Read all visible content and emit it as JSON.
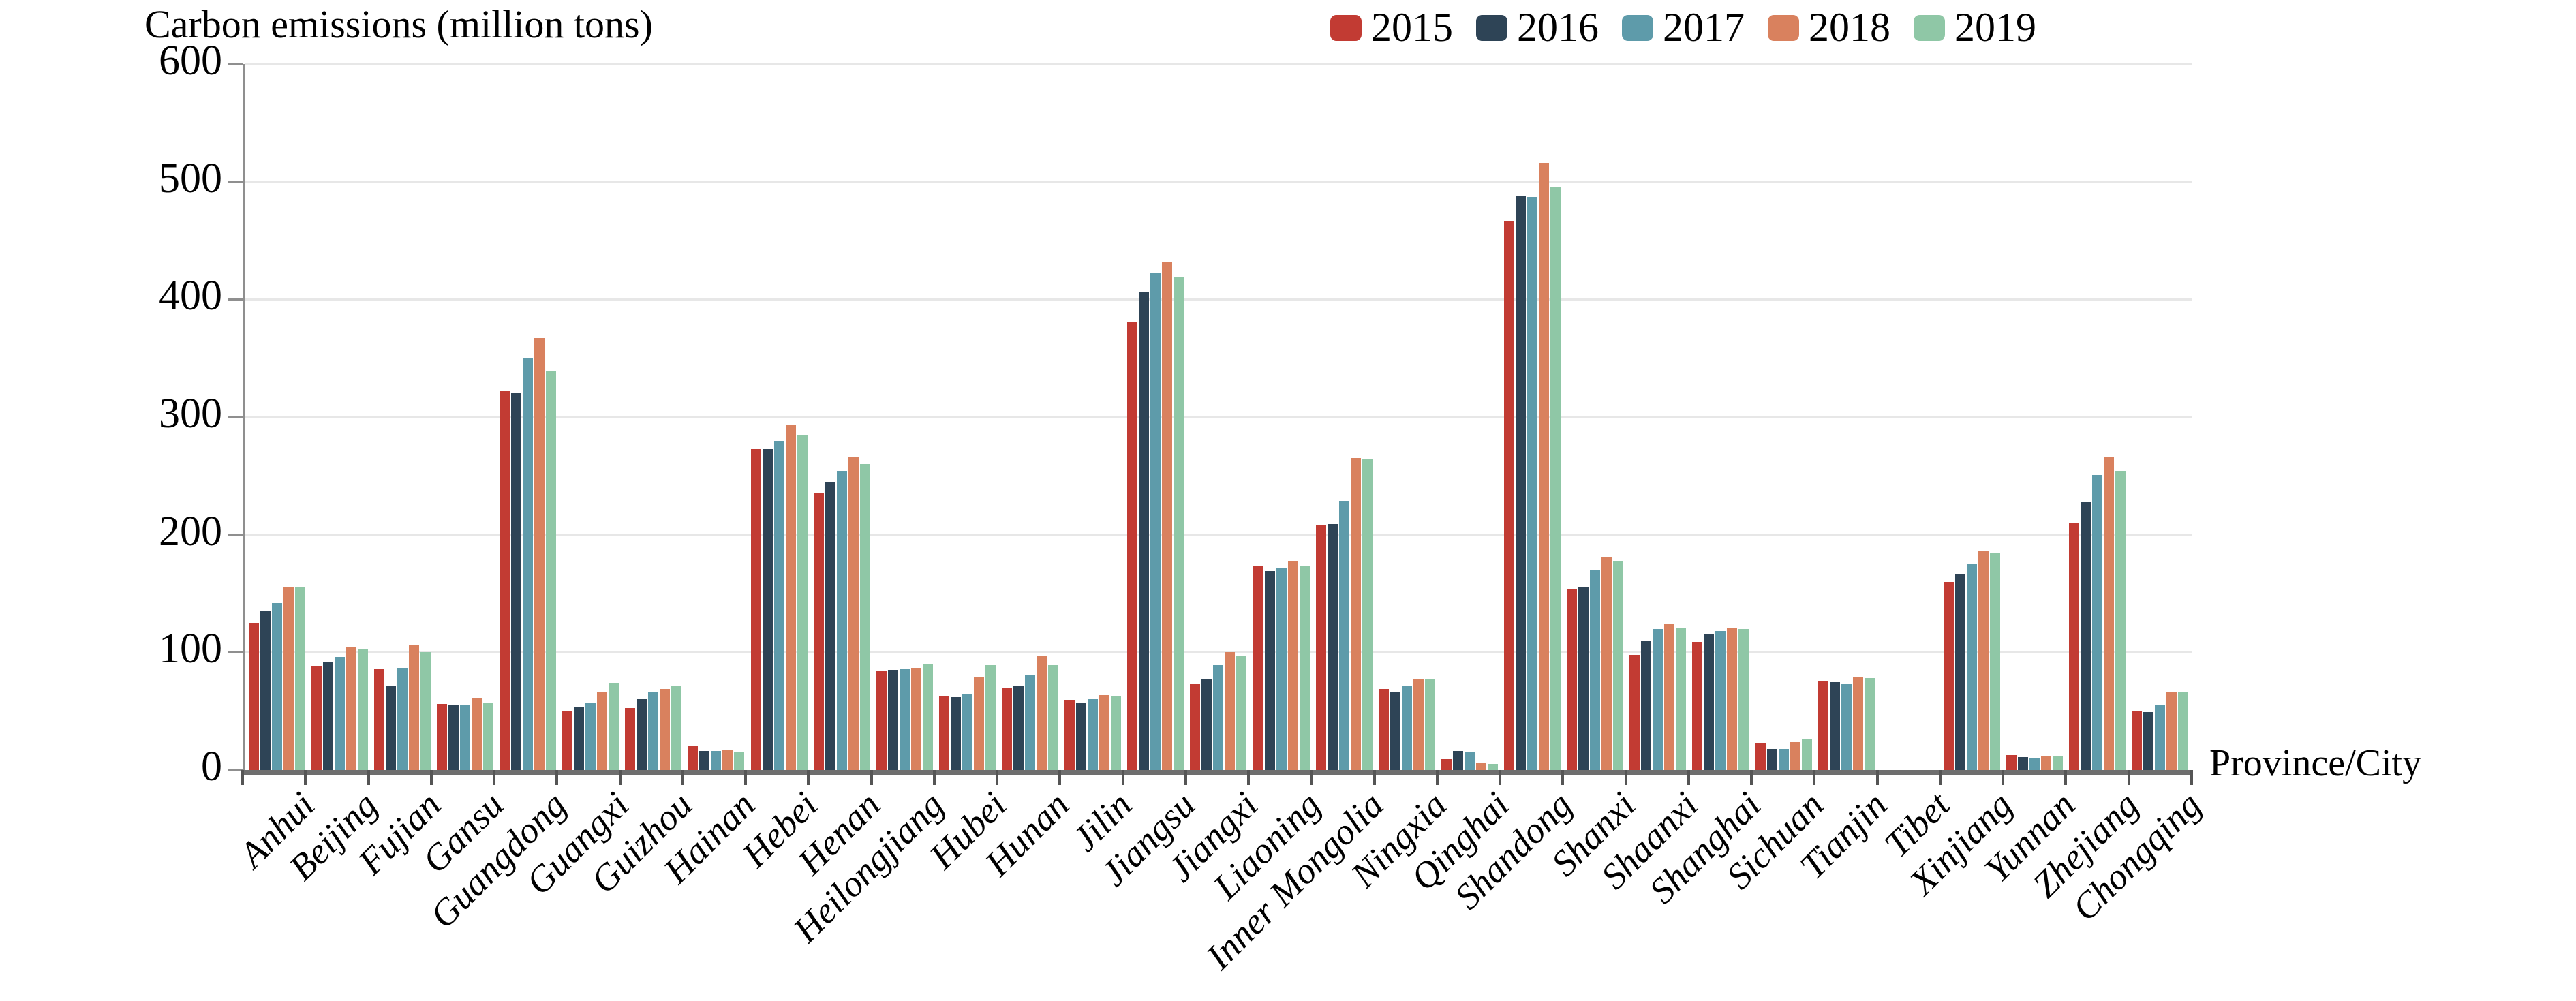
{
  "title": "Carbon emissions (million tons)",
  "xaxis_title": "Province/City",
  "chart_data": {
    "type": "bar",
    "title": "Carbon emissions (million tons)",
    "xlabel": "Province/City",
    "ylabel": "Carbon emissions (million tons)",
    "ylim": [
      0,
      600
    ],
    "yticks": [
      0,
      100,
      200,
      300,
      400,
      500,
      600
    ],
    "grid": true,
    "legend_position": "top-right",
    "categories": [
      "Anhui",
      "Beijing",
      "Fujian",
      "Gansu",
      "Guangdong",
      "Guangxi",
      "Guizhou",
      "Hainan",
      "Hebei",
      "Henan",
      "Heilongjiang",
      "Hubei",
      "Hunan",
      "Jilin",
      "Jiangsu",
      "Jiangxi",
      "Liaoning",
      "Inner Mongolia",
      "Ningxia",
      "Qinghai",
      "Shandong",
      "Shanxi",
      "Shaanxi",
      "Shanghai",
      "Sichuan",
      "Tianjin",
      "Tibet",
      "Xinjiang",
      "Yunnan",
      "Zhejiang",
      "Chongqing"
    ],
    "series": [
      {
        "name": "2015",
        "color": "#c23b33",
        "values": [
          125,
          88,
          86,
          56,
          322,
          50,
          53,
          20,
          273,
          235,
          84,
          63,
          70,
          59,
          381,
          73,
          174,
          208,
          69,
          9,
          467,
          154,
          98,
          109,
          23,
          76,
          0,
          160,
          13,
          210,
          50
        ]
      },
      {
        "name": "2016",
        "color": "#2e4456",
        "values": [
          135,
          92,
          71,
          55,
          320,
          54,
          60,
          16,
          273,
          245,
          85,
          62,
          71,
          57,
          406,
          77,
          169,
          209,
          66,
          16,
          488,
          155,
          110,
          115,
          18,
          75,
          0,
          166,
          11,
          228,
          49
        ]
      },
      {
        "name": "2017",
        "color": "#5e9baa",
        "values": [
          142,
          96,
          87,
          55,
          350,
          57,
          66,
          16,
          280,
          254,
          86,
          65,
          81,
          60,
          423,
          89,
          172,
          229,
          72,
          15,
          487,
          170,
          120,
          118,
          18,
          73,
          0,
          175,
          10,
          251,
          55
        ]
      },
      {
        "name": "2018",
        "color": "#d9815e",
        "values": [
          156,
          104,
          106,
          61,
          367,
          66,
          69,
          17,
          293,
          266,
          87,
          79,
          97,
          64,
          432,
          100,
          177,
          265,
          77,
          6,
          516,
          181,
          124,
          121,
          24,
          79,
          0,
          186,
          12,
          266,
          66
        ]
      },
      {
        "name": "2019",
        "color": "#8fc7a6",
        "values": [
          156,
          103,
          100,
          57,
          339,
          74,
          71,
          15,
          285,
          260,
          90,
          89,
          89,
          63,
          419,
          97,
          174,
          264,
          77,
          5,
          495,
          178,
          121,
          120,
          26,
          78,
          0,
          185,
          12,
          254,
          66
        ]
      }
    ]
  }
}
